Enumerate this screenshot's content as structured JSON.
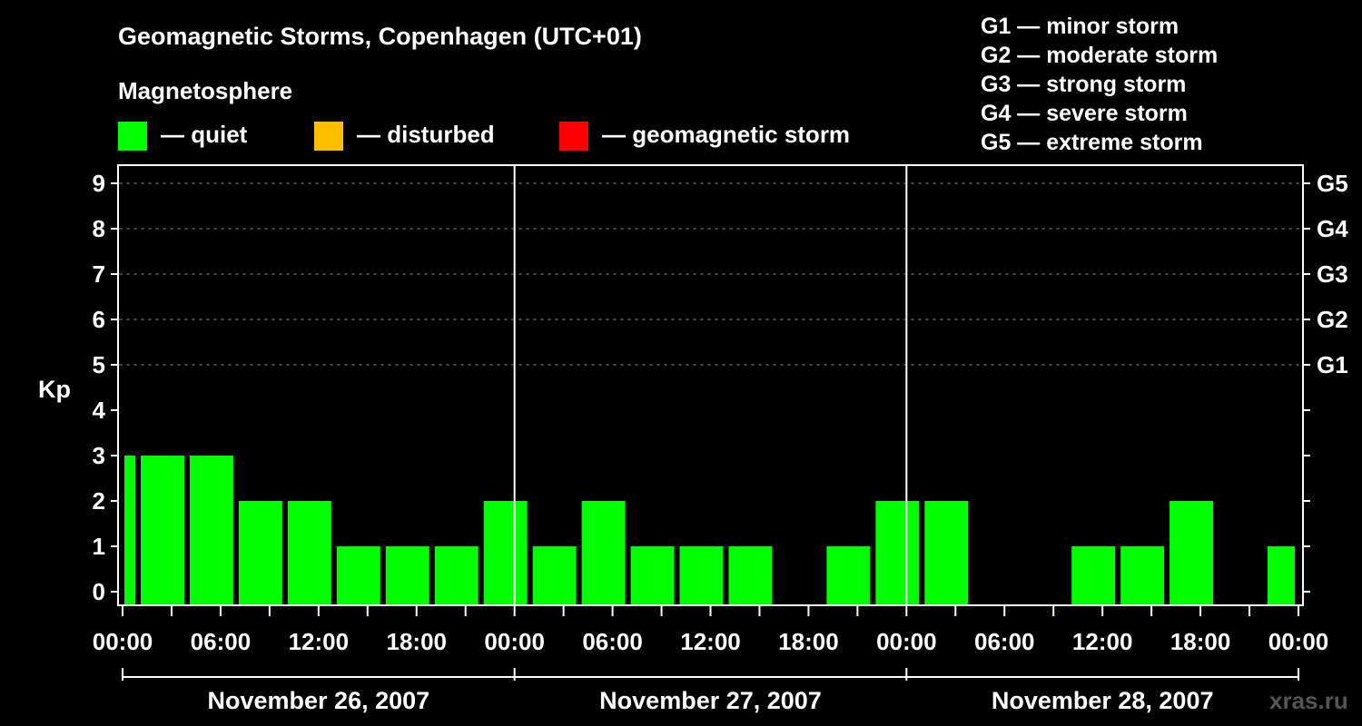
{
  "chart_data": {
    "type": "bar",
    "title": "Geomagnetic Storms, Copenhagen (UTC+01)",
    "ylabel": "Kp",
    "ylim": [
      0,
      9
    ],
    "yticks": [
      0,
      1,
      2,
      3,
      4,
      5,
      6,
      7,
      8,
      9
    ],
    "right_axis": [
      {
        "label": "G5",
        "kp": 9
      },
      {
        "label": "G4",
        "kp": 8
      },
      {
        "label": "G3",
        "kp": 7
      },
      {
        "label": "G2",
        "kp": 6
      },
      {
        "label": "G1",
        "kp": 5
      }
    ],
    "legend": {
      "title": "Magnetosphere",
      "items": [
        {
          "label": "— quiet",
          "color": "#00ff00"
        },
        {
          "label": "— disturbed",
          "color": "#ffbf00"
        },
        {
          "label": "— geomagnetic storm",
          "color": "#ff0000"
        }
      ]
    },
    "storm_scale": [
      "G1 — minor storm",
      "G2 — moderate storm",
      "G3 — strong storm",
      "G4 — severe storm",
      "G5 — extreme storm"
    ],
    "x_tick_labels": [
      "00:00",
      "06:00",
      "12:00",
      "18:00",
      "00:00",
      "06:00",
      "12:00",
      "18:00",
      "00:00",
      "06:00",
      "12:00",
      "18:00",
      "00:00"
    ],
    "days": [
      "November 26, 2007",
      "November 27, 2007",
      "November 28, 2007"
    ],
    "bar_hours": 3,
    "hours_total": 72,
    "first_bar_start_hour": -2,
    "values": [
      3,
      3,
      3,
      2,
      2,
      1,
      1,
      1,
      2,
      1,
      2,
      1,
      1,
      1,
      0,
      1,
      2,
      2,
      0,
      0,
      1,
      1,
      2,
      0,
      1
    ],
    "bar_color": "#00ff00",
    "grid": true,
    "watermark": "xras.ru"
  }
}
